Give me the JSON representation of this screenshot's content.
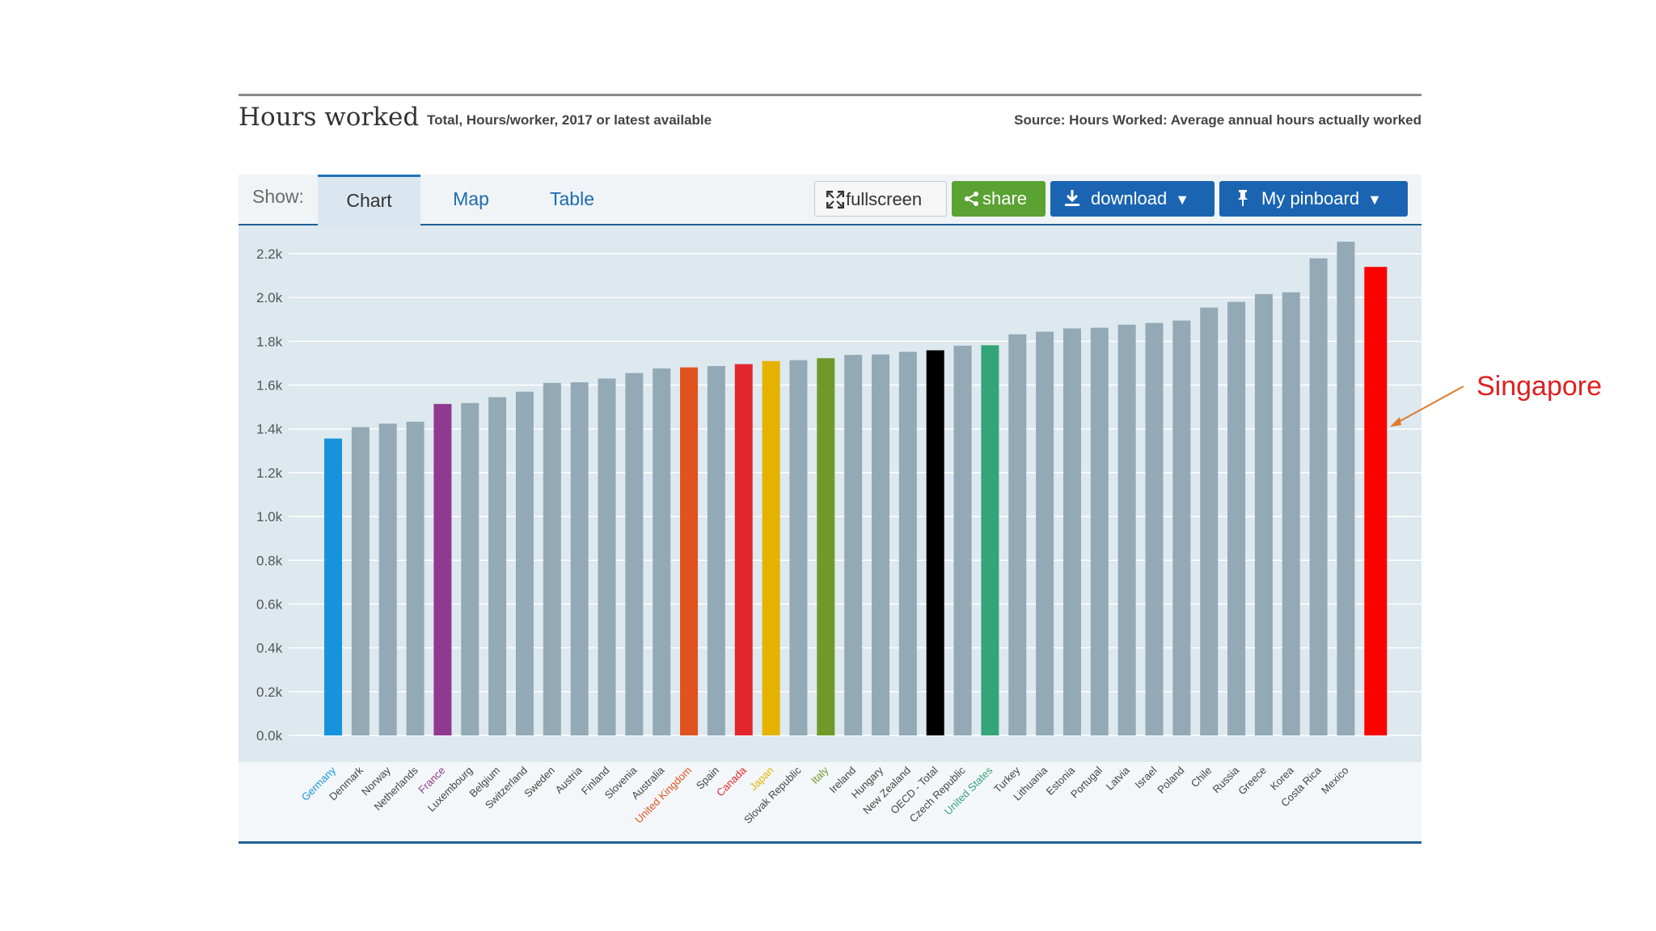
{
  "header": {
    "title": "Hours worked",
    "subtitle": "Total, Hours/worker, 2017 or latest available",
    "source": "Source: Hours Worked: Average annual hours actually worked"
  },
  "toolbar": {
    "show_label": "Show:",
    "tabs": [
      {
        "label": "Chart",
        "active": true
      },
      {
        "label": "Map",
        "active": false
      },
      {
        "label": "Table",
        "active": false
      }
    ],
    "buttons": {
      "fullscreen": "fullscreen",
      "share": "share",
      "download": "download",
      "pinboard": "My pinboard"
    },
    "icons": {
      "fullscreen": "expand-icon",
      "share": "share-icon",
      "download": "download-icon",
      "pinboard": "pin-icon",
      "caret": "caret-down-icon"
    }
  },
  "annotation": {
    "label": "Singapore",
    "color": "#e02020",
    "points_to": "Singapore"
  },
  "chart_data": {
    "type": "bar",
    "title": "Hours worked",
    "subtitle": "Total, Hours/worker, 2017 or latest available",
    "xlabel": "",
    "ylabel": "",
    "ylim": [
      0,
      2200
    ],
    "yticks": [
      "0.0k",
      "0.2k",
      "0.4k",
      "0.6k",
      "0.8k",
      "1.0k",
      "1.2k",
      "1.4k",
      "1.6k",
      "1.8k",
      "2.0k",
      "2.2k"
    ],
    "grid": true,
    "default_color": "#93a9b6",
    "categories": [
      "Germany",
      "Denmark",
      "Norway",
      "Netherlands",
      "France",
      "Luxembourg",
      "Belgium",
      "Switzerland",
      "Sweden",
      "Austria",
      "Finland",
      "Slovenia",
      "Australia",
      "United Kingdom",
      "Spain",
      "Canada",
      "Japan",
      "Slovak Republic",
      "Italy",
      "Ireland",
      "Hungary",
      "New Zealand",
      "OECD - Total",
      "Czech Republic",
      "United States",
      "Turkey",
      "Lithuania",
      "Estonia",
      "Portugal",
      "Latvia",
      "Israel",
      "Poland",
      "Chile",
      "Russia",
      "Greece",
      "Korea",
      "Costa Rica",
      "Mexico",
      ""
    ],
    "values": [
      1356,
      1408,
      1424,
      1433,
      1514,
      1518,
      1545,
      1570,
      1610,
      1613,
      1630,
      1655,
      1676,
      1681,
      1687,
      1696,
      1710,
      1714,
      1723,
      1738,
      1740,
      1752,
      1759,
      1780,
      1782,
      1832,
      1844,
      1859,
      1862,
      1876,
      1884,
      1895,
      1954,
      1980,
      2016,
      2024,
      2179,
      2255,
      2140
    ],
    "highlights": {
      "Germany": "#1793dd",
      "France": "#8f3a8f",
      "United Kingdom": "#e0531f",
      "Canada": "#e3262e",
      "Japan": "#e5b200",
      "Italy": "#6f9a2a",
      "OECD - Total": "#000000",
      "United States": "#33a578",
      "": "#ff0000"
    },
    "label_colors": {
      "Germany": "#1793dd",
      "France": "#8f3a8f",
      "United Kingdom": "#e0531f",
      "Canada": "#e3262e",
      "Japan": "#e5b200",
      "Italy": "#6f9a2a",
      "United States": "#33a578"
    }
  }
}
